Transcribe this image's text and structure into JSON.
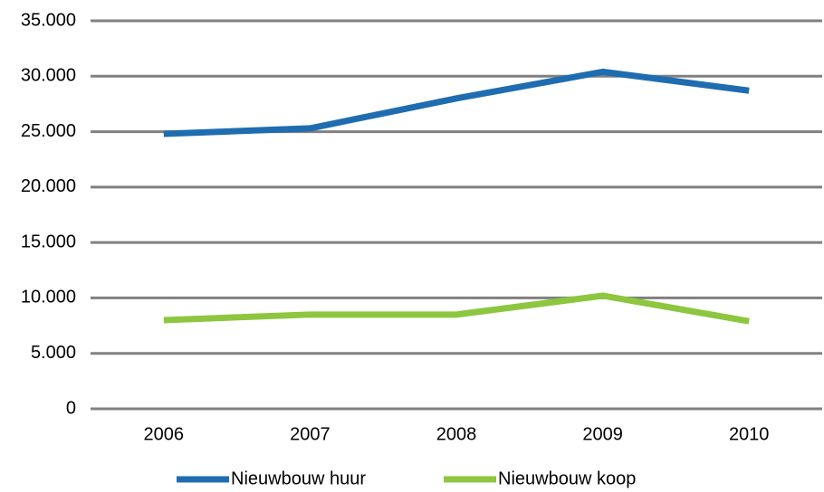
{
  "chart_data": {
    "type": "line",
    "categories": [
      "2006",
      "2007",
      "2008",
      "2009",
      "2010"
    ],
    "series": [
      {
        "name": "Nieuwbouw huur",
        "color": "#1f6db0",
        "values": [
          24800,
          25300,
          28000,
          30400,
          28700
        ]
      },
      {
        "name": "Nieuwbouw koop",
        "color": "#8dc63f",
        "values": [
          8000,
          8500,
          8500,
          10200,
          7900
        ]
      }
    ],
    "ylim": [
      0,
      35000
    ],
    "yticks": [
      0,
      {
        "value": 5000,
        "label": "5.000"
      },
      {
        "value": 10000,
        "label": "10.000"
      },
      {
        "value": 15000,
        "label": "15.000"
      },
      {
        "value": 20000,
        "label": "20.000"
      },
      {
        "value": 25000,
        "label": "25.000"
      },
      {
        "value": 30000,
        "label": "30.000"
      },
      {
        "value": 35000,
        "label": "35.000"
      }
    ],
    "grid": true,
    "legend": "bottom"
  }
}
